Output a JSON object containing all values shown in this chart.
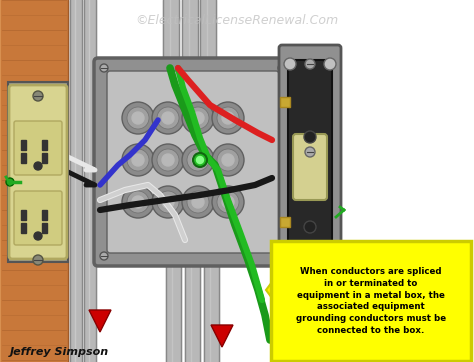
{
  "bg_color": "#ffffff",
  "watermark": "©ElectricalLicenseRenewal.Com",
  "watermark_color": "#c0c0c0",
  "watermark_fontsize": 9,
  "author": "Jeffrey Simpson",
  "author_fontsize": 8,
  "wood_color": "#c8783a",
  "wood_dark": "#a05a28",
  "wood_light": "#d89050",
  "box_outer": "#909090",
  "box_mid": "#aaaaaa",
  "box_inner": "#c0c0c0",
  "box_edge": "#606060",
  "conduit_color": "#b8b8b8",
  "conduit_highlight": "#d8d8d8",
  "conduit_shadow": "#888888",
  "outlet_body": "#d8d490",
  "outlet_dark": "#b0a860",
  "outlet_face": "#d0cc80",
  "switch_plate": "#909090",
  "switch_body": "#282828",
  "switch_toggle": "#d4d090",
  "switch_metal": "#888888",
  "wire_red": "#dd2020",
  "wire_black": "#181818",
  "wire_white": "#e8e8e8",
  "wire_green": "#1a9a1a",
  "wire_green2": "#22bb22",
  "wire_blue": "#3333cc",
  "wire_lw": 3.5,
  "text_box_bg": "#ffff00",
  "text_box_border": "#cccc00",
  "annotation_text": "When conductors are spliced\nin or terminated to\nequipment in a metal box, the\nassociated equipment\ngrounding conductors must be\nconnected to the box.",
  "annotation_fontsize": 6.2,
  "red_arrow_color": "#cc0000",
  "yellow_arrow_color": "#ffee00"
}
